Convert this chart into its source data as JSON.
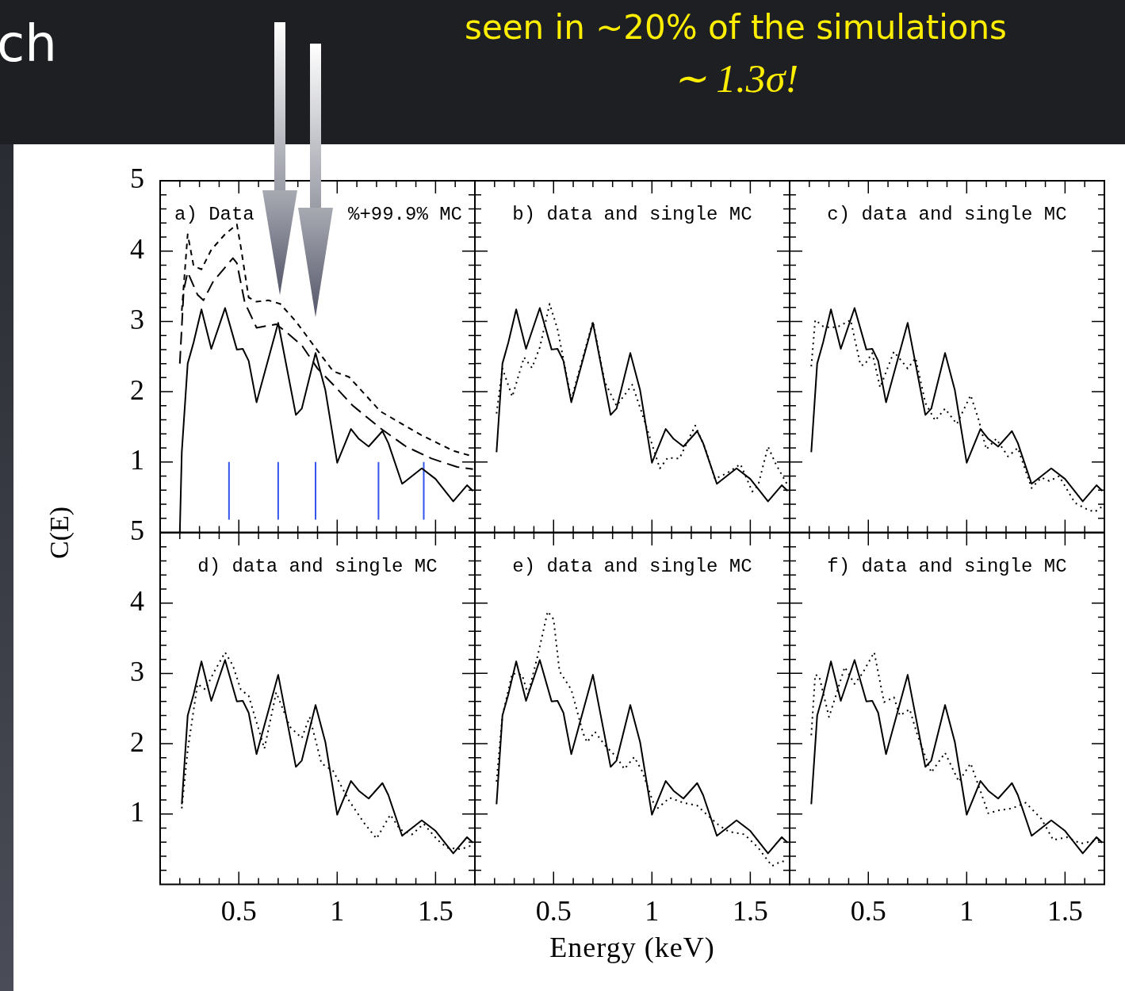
{
  "chart_data": [
    {
      "type": "line",
      "title": "a) Data",
      "subtitle": "%+99.9% MC",
      "ylabel": "C(E)",
      "annotations": [
        "ch",
        "seen in ~20% of the simulations",
        "∼ 1.3σ!"
      ],
      "xlim": [
        0.1,
        1.7
      ],
      "xticks": [
        {
          "value": 0.2,
          "label": null
        },
        {
          "value": 0.3,
          "label": null
        },
        {
          "value": 0.4,
          "label": null
        },
        0.5,
        {
          "value": 0.6,
          "label": null
        },
        {
          "value": 0.7,
          "label": null
        },
        {
          "value": 0.8,
          "label": null
        },
        {
          "value": 0.9,
          "label": null
        },
        1,
        {
          "value": 1.1,
          "label": null
        },
        {
          "value": 1.2,
          "label": null
        },
        {
          "value": 1.3,
          "label": null
        },
        {
          "value": 1.4,
          "label": null
        },
        1.5,
        {
          "value": 1.6,
          "label": null
        }
      ],
      "ylim": [
        0,
        5
      ],
      "yticks": [
        {
          "value": 0.2,
          "label": null
        },
        {
          "value": 0.4,
          "label": null
        },
        {
          "value": 0.6,
          "label": null
        },
        {
          "value": 0.8,
          "label": null
        },
        1,
        {
          "value": 1.2,
          "label": null
        },
        {
          "value": 1.4,
          "label": null
        },
        {
          "value": 1.6,
          "label": null
        },
        {
          "value": 1.8,
          "label": null
        },
        2,
        {
          "value": 2.2,
          "label": null
        },
        {
          "value": 2.4,
          "label": null
        },
        {
          "value": 2.6,
          "label": null
        },
        {
          "value": 2.8,
          "label": null
        },
        3,
        {
          "value": 3.2,
          "label": null
        },
        {
          "value": 3.4,
          "label": null
        },
        {
          "value": 3.6,
          "label": null
        },
        {
          "value": 3.8,
          "label": null
        },
        4,
        {
          "value": 4.2,
          "label": null
        },
        {
          "value": 4.4,
          "label": null
        },
        {
          "value": 4.6,
          "label": null
        },
        {
          "value": 4.8,
          "label": null
        },
        5
      ],
      "tick_labels": "y",
      "legend": false,
      "grid": false,
      "series": [
        {
          "color": "#000000",
          "line_style": "solid",
          "x": [
            0.2,
            0.21,
            0.24,
            0.27,
            0.31,
            0.36,
            0.43,
            0.49,
            0.52,
            0.55,
            0.59,
            0.7,
            0.79,
            0.82,
            0.89,
            0.94,
            1.0,
            1.07,
            1.11,
            1.16,
            1.23,
            1.26,
            1.33,
            1.43,
            1.5,
            1.59,
            1.66,
            1.69
          ],
          "values": [
            0,
            1.14,
            2.4,
            2.7,
            3.17,
            2.61,
            3.19,
            2.6,
            2.61,
            2.44,
            1.85,
            2.98,
            1.67,
            1.76,
            2.55,
            2.02,
            0.99,
            1.47,
            1.33,
            1.22,
            1.44,
            1.27,
            0.69,
            0.91,
            0.76,
            0.44,
            0.67,
            0.59
          ]
        },
        {
          "color": "#000000",
          "line_style": "dashed",
          "x": [
            0.2,
            0.22,
            0.24,
            0.29,
            0.32,
            0.37,
            0.47,
            0.49,
            0.53,
            0.59,
            0.69,
            0.74,
            0.82,
            0.9,
            0.98,
            1.08,
            1.22,
            1.35,
            1.48,
            1.61,
            1.69
          ],
          "values": [
            2.4,
            3.45,
            3.7,
            3.38,
            3.3,
            3.57,
            3.9,
            3.83,
            3.27,
            2.91,
            2.96,
            2.85,
            2.66,
            2.33,
            2.1,
            1.8,
            1.48,
            1.22,
            1.05,
            0.93,
            0.9
          ]
        },
        {
          "color": "#000000",
          "line_style": "dashed",
          "x": [
            0.21,
            0.24,
            0.27,
            0.31,
            0.36,
            0.43,
            0.49,
            0.51,
            0.55,
            0.59,
            0.65,
            0.71,
            0.79,
            0.88,
            0.98,
            1.06,
            1.22,
            1.43,
            1.59,
            1.69
          ],
          "values": [
            3.15,
            4.24,
            3.79,
            3.74,
            4.02,
            4.24,
            4.38,
            4.06,
            3.34,
            3.28,
            3.3,
            3.25,
            3.0,
            2.66,
            2.29,
            2.21,
            1.72,
            1.38,
            1.16,
            1.08
          ]
        },
        {
          "color": "#3355ee",
          "line_style": "solid",
          "x": [
            0.45,
            0.45
          ],
          "values": [
            0.18,
            1.0
          ]
        },
        {
          "color": "#3355ee",
          "line_style": "solid",
          "x": [
            0.7,
            0.7
          ],
          "values": [
            0.18,
            1.0
          ]
        },
        {
          "color": "#3355ee",
          "line_style": "solid",
          "x": [
            0.89,
            0.89
          ],
          "values": [
            0.18,
            1.0
          ]
        },
        {
          "color": "#3355ee",
          "line_style": "solid",
          "x": [
            1.21,
            1.21
          ],
          "values": [
            0.18,
            1.0
          ]
        },
        {
          "color": "#3355ee",
          "line_style": "solid",
          "x": [
            1.44,
            1.44
          ],
          "values": [
            0.18,
            1.0
          ]
        }
      ]
    },
    {
      "type": "line",
      "title": "b) data and single MC",
      "xlim": [
        0.1,
        1.7
      ],
      "xticks": [
        {
          "value": 0.2,
          "label": null
        },
        {
          "value": 0.3,
          "label": null
        },
        {
          "value": 0.4,
          "label": null
        },
        0.5,
        {
          "value": 0.6,
          "label": null
        },
        {
          "value": 0.7,
          "label": null
        },
        {
          "value": 0.8,
          "label": null
        },
        {
          "value": 0.9,
          "label": null
        },
        1,
        {
          "value": 1.1,
          "label": null
        },
        {
          "value": 1.2,
          "label": null
        },
        {
          "value": 1.3,
          "label": null
        },
        {
          "value": 1.4,
          "label": null
        },
        1.5,
        {
          "value": 1.6,
          "label": null
        }
      ],
      "ylim": [
        0,
        5
      ],
      "yticks": [
        {
          "value": 0.2,
          "label": null
        },
        {
          "value": 0.4,
          "label": null
        },
        {
          "value": 0.6,
          "label": null
        },
        {
          "value": 0.8,
          "label": null
        },
        1,
        {
          "value": 1.2,
          "label": null
        },
        {
          "value": 1.4,
          "label": null
        },
        {
          "value": 1.6,
          "label": null
        },
        {
          "value": 1.8,
          "label": null
        },
        2,
        {
          "value": 2.2,
          "label": null
        },
        {
          "value": 2.4,
          "label": null
        },
        {
          "value": 2.6,
          "label": null
        },
        {
          "value": 2.8,
          "label": null
        },
        3,
        {
          "value": 3.2,
          "label": null
        },
        {
          "value": 3.4,
          "label": null
        },
        {
          "value": 3.6,
          "label": null
        },
        {
          "value": 3.8,
          "label": null
        },
        4,
        {
          "value": 4.2,
          "label": null
        },
        {
          "value": 4.4,
          "label": null
        },
        {
          "value": 4.6,
          "label": null
        },
        {
          "value": 4.8,
          "label": null
        },
        5
      ],
      "tick_labels": false,
      "legend": false,
      "grid": false,
      "series": [
        {
          "color": "#000000",
          "line_style": "solid",
          "x": [
            0.21,
            0.24,
            0.27,
            0.31,
            0.36,
            0.43,
            0.49,
            0.52,
            0.55,
            0.59,
            0.7,
            0.79,
            0.82,
            0.89,
            0.94,
            1.0,
            1.07,
            1.11,
            1.16,
            1.23,
            1.26,
            1.33,
            1.43,
            1.5,
            1.59,
            1.66,
            1.69
          ],
          "values": [
            1.14,
            2.4,
            2.7,
            3.17,
            2.61,
            3.19,
            2.6,
            2.61,
            2.44,
            1.85,
            2.98,
            1.67,
            1.76,
            2.55,
            2.02,
            0.99,
            1.47,
            1.33,
            1.22,
            1.44,
            1.27,
            0.69,
            0.91,
            0.76,
            0.44,
            0.67,
            0.59
          ]
        },
        {
          "color": "#000000",
          "line_style": "dotted",
          "x": [
            0.21,
            0.24,
            0.29,
            0.35,
            0.39,
            0.43,
            0.48,
            0.52,
            0.59,
            0.7,
            0.76,
            0.82,
            0.9,
            0.95,
            1.04,
            1.08,
            1.14,
            1.22,
            1.27,
            1.32,
            1.38,
            1.45,
            1.51,
            1.54,
            1.59,
            1.63,
            1.69
          ],
          "values": [
            1.69,
            2.33,
            1.93,
            2.49,
            2.34,
            2.63,
            3.25,
            2.89,
            1.89,
            3.0,
            2.14,
            1.8,
            2.1,
            1.69,
            0.91,
            1.06,
            1.05,
            1.52,
            1.2,
            0.76,
            0.84,
            0.97,
            0.58,
            0.67,
            1.22,
            0.97,
            0.67
          ]
        }
      ]
    },
    {
      "type": "line",
      "title": "c) data and single MC",
      "xlim": [
        0.1,
        1.7
      ],
      "xticks": [
        {
          "value": 0.2,
          "label": null
        },
        {
          "value": 0.3,
          "label": null
        },
        {
          "value": 0.4,
          "label": null
        },
        0.5,
        {
          "value": 0.6,
          "label": null
        },
        {
          "value": 0.7,
          "label": null
        },
        {
          "value": 0.8,
          "label": null
        },
        {
          "value": 0.9,
          "label": null
        },
        1,
        {
          "value": 1.1,
          "label": null
        },
        {
          "value": 1.2,
          "label": null
        },
        {
          "value": 1.3,
          "label": null
        },
        {
          "value": 1.4,
          "label": null
        },
        1.5,
        {
          "value": 1.6,
          "label": null
        }
      ],
      "ylim": [
        0,
        5
      ],
      "yticks": [
        {
          "value": 0.2,
          "label": null
        },
        {
          "value": 0.4,
          "label": null
        },
        {
          "value": 0.6,
          "label": null
        },
        {
          "value": 0.8,
          "label": null
        },
        1,
        {
          "value": 1.2,
          "label": null
        },
        {
          "value": 1.4,
          "label": null
        },
        {
          "value": 1.6,
          "label": null
        },
        {
          "value": 1.8,
          "label": null
        },
        2,
        {
          "value": 2.2,
          "label": null
        },
        {
          "value": 2.4,
          "label": null
        },
        {
          "value": 2.6,
          "label": null
        },
        {
          "value": 2.8,
          "label": null
        },
        3,
        {
          "value": 3.2,
          "label": null
        },
        {
          "value": 3.4,
          "label": null
        },
        {
          "value": 3.6,
          "label": null
        },
        {
          "value": 3.8,
          "label": null
        },
        4,
        {
          "value": 4.2,
          "label": null
        },
        {
          "value": 4.4,
          "label": null
        },
        {
          "value": 4.6,
          "label": null
        },
        {
          "value": 4.8,
          "label": null
        },
        5
      ],
      "tick_labels": false,
      "legend": false,
      "grid": false,
      "series": [
        {
          "color": "#000000",
          "line_style": "solid",
          "x": [
            0.21,
            0.24,
            0.27,
            0.31,
            0.36,
            0.43,
            0.49,
            0.52,
            0.55,
            0.59,
            0.7,
            0.79,
            0.82,
            0.89,
            0.94,
            1.0,
            1.07,
            1.11,
            1.16,
            1.23,
            1.26,
            1.33,
            1.43,
            1.5,
            1.59,
            1.66,
            1.69
          ],
          "values": [
            1.14,
            2.4,
            2.7,
            3.17,
            2.61,
            3.19,
            2.6,
            2.61,
            2.44,
            1.85,
            2.98,
            1.67,
            1.76,
            2.55,
            2.02,
            0.99,
            1.47,
            1.33,
            1.22,
            1.44,
            1.27,
            0.69,
            0.91,
            0.76,
            0.44,
            0.67,
            0.59
          ]
        },
        {
          "color": "#000000",
          "line_style": "dotted",
          "x": [
            0.21,
            0.23,
            0.27,
            0.31,
            0.35,
            0.41,
            0.46,
            0.48,
            0.52,
            0.56,
            0.63,
            0.7,
            0.74,
            0.79,
            0.84,
            0.89,
            0.95,
            1.02,
            1.06,
            1.1,
            1.15,
            1.21,
            1.26,
            1.33,
            1.38,
            1.42,
            1.47,
            1.55,
            1.61,
            1.65,
            1.69
          ],
          "values": [
            2.36,
            3.02,
            2.93,
            2.91,
            2.93,
            3.02,
            2.38,
            2.38,
            2.55,
            2.06,
            2.57,
            2.33,
            2.48,
            1.84,
            1.59,
            1.76,
            1.54,
            1.95,
            1.61,
            1.18,
            1.33,
            1.08,
            1.2,
            0.63,
            0.78,
            0.73,
            0.8,
            0.42,
            0.33,
            0.29,
            0.37
          ]
        }
      ]
    },
    {
      "type": "line",
      "title": "d) data and single MC",
      "xlim": [
        0.1,
        1.7
      ],
      "xticks": [
        {
          "value": 0.2,
          "label": null
        },
        {
          "value": 0.3,
          "label": null
        },
        {
          "value": 0.4,
          "label": null
        },
        0.5,
        {
          "value": 0.6,
          "label": null
        },
        {
          "value": 0.7,
          "label": null
        },
        {
          "value": 0.8,
          "label": null
        },
        {
          "value": 0.9,
          "label": null
        },
        1,
        {
          "value": 1.1,
          "label": null
        },
        {
          "value": 1.2,
          "label": null
        },
        {
          "value": 1.3,
          "label": null
        },
        {
          "value": 1.4,
          "label": null
        },
        1.5,
        {
          "value": 1.6,
          "label": null
        }
      ],
      "ylim": [
        0,
        5
      ],
      "yticks": [
        {
          "value": 0.2,
          "label": null
        },
        {
          "value": 0.4,
          "label": null
        },
        {
          "value": 0.6,
          "label": null
        },
        {
          "value": 0.8,
          "label": null
        },
        1,
        {
          "value": 1.2,
          "label": null
        },
        {
          "value": 1.4,
          "label": null
        },
        {
          "value": 1.6,
          "label": null
        },
        {
          "value": 1.8,
          "label": null
        },
        2,
        {
          "value": 2.2,
          "label": null
        },
        {
          "value": 2.4,
          "label": null
        },
        {
          "value": 2.6,
          "label": null
        },
        {
          "value": 2.8,
          "label": null
        },
        3,
        {
          "value": 3.2,
          "label": null
        },
        {
          "value": 3.4,
          "label": null
        },
        {
          "value": 3.6,
          "label": null
        },
        {
          "value": 3.8,
          "label": null
        },
        4,
        {
          "value": 4.2,
          "label": null
        },
        {
          "value": 4.4,
          "label": null
        },
        {
          "value": 4.6,
          "label": null
        },
        {
          "value": 4.8,
          "label": null
        },
        5
      ],
      "legend": false,
      "grid": false,
      "series": [
        {
          "color": "#000000",
          "line_style": "solid",
          "x": [
            0.21,
            0.24,
            0.27,
            0.31,
            0.36,
            0.43,
            0.49,
            0.52,
            0.55,
            0.59,
            0.7,
            0.79,
            0.82,
            0.89,
            0.94,
            1.0,
            1.07,
            1.11,
            1.16,
            1.23,
            1.26,
            1.33,
            1.43,
            1.5,
            1.59,
            1.66,
            1.69
          ],
          "values": [
            1.14,
            2.4,
            2.7,
            3.17,
            2.61,
            3.19,
            2.6,
            2.61,
            2.44,
            1.85,
            2.98,
            1.67,
            1.76,
            2.55,
            2.02,
            0.99,
            1.47,
            1.33,
            1.22,
            1.44,
            1.27,
            0.69,
            0.91,
            0.76,
            0.44,
            0.67,
            0.59
          ]
        },
        {
          "color": "#000000",
          "line_style": "dotted",
          "x": [
            0.21,
            0.24,
            0.29,
            0.33,
            0.37,
            0.43,
            0.47,
            0.51,
            0.55,
            0.63,
            0.69,
            0.76,
            0.82,
            0.86,
            0.92,
            0.98,
            1.06,
            1.14,
            1.2,
            1.27,
            1.32,
            1.38,
            1.44,
            1.51,
            1.56,
            1.63,
            1.69
          ],
          "values": [
            1.08,
            1.91,
            2.85,
            2.77,
            3.0,
            3.3,
            3.11,
            2.77,
            2.68,
            1.93,
            2.73,
            2.24,
            2.08,
            2.38,
            1.72,
            1.61,
            1.19,
            0.86,
            0.65,
            0.99,
            0.78,
            0.71,
            0.86,
            0.63,
            0.52,
            0.5,
            0.56
          ]
        }
      ]
    },
    {
      "type": "line",
      "title": "e) data and single MC",
      "xlabel": "Energy (keV)",
      "xlim": [
        0.1,
        1.7
      ],
      "xticks": [
        {
          "value": 0.2,
          "label": null
        },
        {
          "value": 0.3,
          "label": null
        },
        {
          "value": 0.4,
          "label": null
        },
        0.5,
        {
          "value": 0.6,
          "label": null
        },
        {
          "value": 0.7,
          "label": null
        },
        {
          "value": 0.8,
          "label": null
        },
        {
          "value": 0.9,
          "label": null
        },
        1,
        {
          "value": 1.1,
          "label": null
        },
        {
          "value": 1.2,
          "label": null
        },
        {
          "value": 1.3,
          "label": null
        },
        {
          "value": 1.4,
          "label": null
        },
        1.5,
        {
          "value": 1.6,
          "label": null
        }
      ],
      "ylim": [
        0,
        5
      ],
      "yticks": [
        {
          "value": 0.2,
          "label": null
        },
        {
          "value": 0.4,
          "label": null
        },
        {
          "value": 0.6,
          "label": null
        },
        {
          "value": 0.8,
          "label": null
        },
        1,
        {
          "value": 1.2,
          "label": null
        },
        {
          "value": 1.4,
          "label": null
        },
        {
          "value": 1.6,
          "label": null
        },
        {
          "value": 1.8,
          "label": null
        },
        2,
        {
          "value": 2.2,
          "label": null
        },
        {
          "value": 2.4,
          "label": null
        },
        {
          "value": 2.6,
          "label": null
        },
        {
          "value": 2.8,
          "label": null
        },
        3,
        {
          "value": 3.2,
          "label": null
        },
        {
          "value": 3.4,
          "label": null
        },
        {
          "value": 3.6,
          "label": null
        },
        {
          "value": 3.8,
          "label": null
        },
        4,
        {
          "value": 4.2,
          "label": null
        },
        {
          "value": 4.4,
          "label": null
        },
        {
          "value": 4.6,
          "label": null
        },
        {
          "value": 4.8,
          "label": null
        },
        5
      ],
      "tick_labels": "x",
      "legend": false,
      "grid": false,
      "series": [
        {
          "color": "#000000",
          "line_style": "solid",
          "x": [
            0.21,
            0.24,
            0.27,
            0.31,
            0.36,
            0.43,
            0.49,
            0.52,
            0.55,
            0.59,
            0.7,
            0.79,
            0.82,
            0.89,
            0.94,
            1.0,
            1.07,
            1.11,
            1.16,
            1.23,
            1.26,
            1.33,
            1.43,
            1.5,
            1.59,
            1.66,
            1.69
          ],
          "values": [
            1.14,
            2.4,
            2.7,
            3.17,
            2.61,
            3.19,
            2.6,
            2.61,
            2.44,
            1.85,
            2.98,
            1.67,
            1.76,
            2.55,
            2.02,
            0.99,
            1.47,
            1.33,
            1.22,
            1.44,
            1.27,
            0.69,
            0.91,
            0.76,
            0.44,
            0.67,
            0.59
          ]
        },
        {
          "color": "#000000",
          "line_style": "dotted",
          "x": [
            0.21,
            0.24,
            0.29,
            0.34,
            0.37,
            0.42,
            0.47,
            0.5,
            0.53,
            0.59,
            0.65,
            0.67,
            0.71,
            0.76,
            0.82,
            0.86,
            0.91,
            0.95,
            1.02,
            1.09,
            1.16,
            1.23,
            1.28,
            1.34,
            1.39,
            1.47,
            1.54,
            1.61,
            1.66,
            1.69
          ],
          "values": [
            1.46,
            2.4,
            3.0,
            2.98,
            2.7,
            3.26,
            3.88,
            3.77,
            3.03,
            2.77,
            2.15,
            2.02,
            2.17,
            1.98,
            1.81,
            1.64,
            1.81,
            1.61,
            1.06,
            1.23,
            1.16,
            1.12,
            0.99,
            0.84,
            0.75,
            0.71,
            0.52,
            0.26,
            0.33,
            0.31
          ]
        }
      ]
    },
    {
      "type": "line",
      "title": "f) data and single MC",
      "xlim": [
        0.1,
        1.7
      ],
      "xticks": [
        {
          "value": 0.2,
          "label": null
        },
        {
          "value": 0.3,
          "label": null
        },
        {
          "value": 0.4,
          "label": null
        },
        0.5,
        {
          "value": 0.6,
          "label": null
        },
        {
          "value": 0.7,
          "label": null
        },
        {
          "value": 0.8,
          "label": null
        },
        {
          "value": 0.9,
          "label": null
        },
        1,
        {
          "value": 1.1,
          "label": null
        },
        {
          "value": 1.2,
          "label": null
        },
        {
          "value": 1.3,
          "label": null
        },
        {
          "value": 1.4,
          "label": null
        },
        1.5,
        {
          "value": 1.6,
          "label": null
        }
      ],
      "ylim": [
        0,
        5
      ],
      "yticks": [
        {
          "value": 0.2,
          "label": null
        },
        {
          "value": 0.4,
          "label": null
        },
        {
          "value": 0.6,
          "label": null
        },
        {
          "value": 0.8,
          "label": null
        },
        1,
        {
          "value": 1.2,
          "label": null
        },
        {
          "value": 1.4,
          "label": null
        },
        {
          "value": 1.6,
          "label": null
        },
        {
          "value": 1.8,
          "label": null
        },
        2,
        {
          "value": 2.2,
          "label": null
        },
        {
          "value": 2.4,
          "label": null
        },
        {
          "value": 2.6,
          "label": null
        },
        {
          "value": 2.8,
          "label": null
        },
        3,
        {
          "value": 3.2,
          "label": null
        },
        {
          "value": 3.4,
          "label": null
        },
        {
          "value": 3.6,
          "label": null
        },
        {
          "value": 3.8,
          "label": null
        },
        4,
        {
          "value": 4.2,
          "label": null
        },
        {
          "value": 4.4,
          "label": null
        },
        {
          "value": 4.6,
          "label": null
        },
        {
          "value": 4.8,
          "label": null
        },
        5
      ],
      "tick_labels": "x",
      "legend": false,
      "grid": false,
      "series": [
        {
          "color": "#000000",
          "line_style": "solid",
          "x": [
            0.21,
            0.24,
            0.27,
            0.31,
            0.36,
            0.43,
            0.49,
            0.52,
            0.55,
            0.59,
            0.7,
            0.79,
            0.82,
            0.89,
            0.94,
            1.0,
            1.07,
            1.11,
            1.16,
            1.23,
            1.26,
            1.33,
            1.43,
            1.5,
            1.59,
            1.66,
            1.69
          ],
          "values": [
            1.14,
            2.4,
            2.7,
            3.17,
            2.61,
            3.19,
            2.6,
            2.61,
            2.44,
            1.85,
            2.98,
            1.67,
            1.76,
            2.55,
            2.02,
            0.99,
            1.47,
            1.33,
            1.22,
            1.44,
            1.27,
            0.69,
            0.91,
            0.76,
            0.44,
            0.67,
            0.59
          ]
        },
        {
          "color": "#000000",
          "line_style": "dotted",
          "x": [
            0.21,
            0.23,
            0.25,
            0.3,
            0.33,
            0.38,
            0.43,
            0.47,
            0.53,
            0.58,
            0.63,
            0.66,
            0.71,
            0.75,
            0.82,
            0.89,
            0.96,
            1.02,
            1.11,
            1.16,
            1.23,
            1.3,
            1.38,
            1.44,
            1.51,
            1.58,
            1.65,
            1.69
          ],
          "values": [
            2.12,
            2.98,
            2.96,
            2.38,
            2.64,
            3.09,
            2.85,
            3.0,
            3.3,
            2.59,
            2.66,
            2.4,
            2.49,
            2.12,
            1.59,
            1.87,
            1.46,
            1.72,
            1.01,
            1.05,
            1.08,
            1.16,
            0.93,
            0.63,
            0.67,
            0.58,
            0.62,
            0.63
          ]
        }
      ]
    }
  ]
}
